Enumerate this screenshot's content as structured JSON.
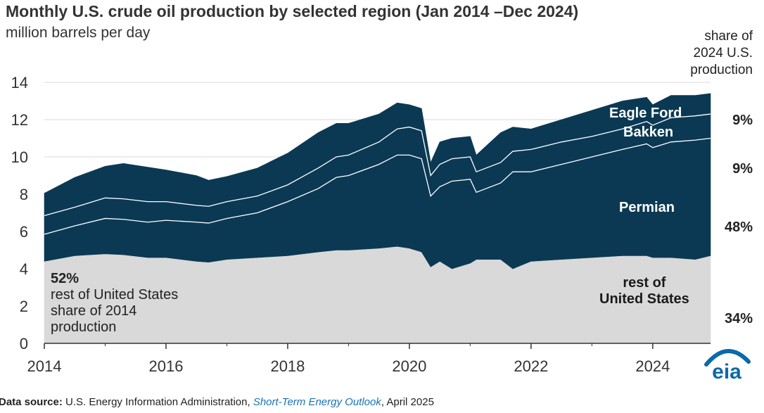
{
  "header": {
    "title": "Monthly U.S. crude oil production by selected region (Jan 2014 –Dec 2024)",
    "subtitle": "million barrels per day"
  },
  "share_heading": [
    "share of",
    "2024 U.S.",
    "production"
  ],
  "shares_2024": {
    "eagle_ford": "9%",
    "bakken": "9%",
    "permian": "48%",
    "rest": "34%"
  },
  "annotation_2014": {
    "percent": "52%",
    "line1": "rest of United States",
    "line2": "share of 2014",
    "line3": "production"
  },
  "labels": {
    "eagle_ford": "Eagle Ford",
    "bakken": "Bakken",
    "permian": "Permian",
    "rest_line1": "rest of",
    "rest_line2": "United States"
  },
  "source": {
    "prefix": "Data source:",
    "agency": " U.S. Energy Information Administration, ",
    "publication": "Short-Term Energy Outlook",
    "date": ", April 2025"
  },
  "logo_text": "eia",
  "colors": {
    "rest": "#d9d9d9",
    "regions": "#0b3954",
    "boundary": "#ffffff",
    "logo": "#0b6aa8"
  },
  "chart_data": {
    "type": "area",
    "stacking": "cumulative",
    "x_unit": "year",
    "xlim": [
      2014,
      2024.95
    ],
    "ylim": [
      0,
      14
    ],
    "x_ticks": [
      2014,
      2016,
      2018,
      2020,
      2022,
      2024
    ],
    "y_ticks": [
      0,
      2,
      4,
      6,
      8,
      10,
      12,
      14
    ],
    "grid": "horizontal",
    "series": [
      {
        "name": "rest of United States",
        "top_key": "rest_top"
      },
      {
        "name": "Permian",
        "top_key": "permian_top"
      },
      {
        "name": "Bakken",
        "top_key": "bakken_top"
      },
      {
        "name": "Eagle Ford",
        "top_key": "eagleford_top"
      }
    ],
    "x": [
      2014.0,
      2014.5,
      2015.0,
      2015.3,
      2015.7,
      2016.0,
      2016.5,
      2016.7,
      2017.0,
      2017.5,
      2018.0,
      2018.5,
      2018.8,
      2019.0,
      2019.5,
      2019.8,
      2020.0,
      2020.2,
      2020.35,
      2020.5,
      2020.7,
      2021.0,
      2021.1,
      2021.5,
      2021.7,
      2022.0,
      2022.5,
      2023.0,
      2023.5,
      2023.9,
      2024.0,
      2024.3,
      2024.7,
      2024.95
    ],
    "rest_top": [
      4.4,
      4.7,
      4.8,
      4.75,
      4.6,
      4.6,
      4.4,
      4.35,
      4.5,
      4.6,
      4.7,
      4.9,
      5.0,
      5.0,
      5.1,
      5.2,
      5.1,
      4.9,
      4.1,
      4.4,
      4.0,
      4.3,
      4.5,
      4.5,
      4.0,
      4.4,
      4.5,
      4.6,
      4.7,
      4.7,
      4.6,
      4.6,
      4.5,
      4.7
    ],
    "permian_top": [
      5.85,
      6.3,
      6.7,
      6.65,
      6.5,
      6.6,
      6.5,
      6.45,
      6.7,
      7.0,
      7.6,
      8.3,
      8.9,
      9.0,
      9.6,
      10.1,
      10.1,
      9.9,
      7.9,
      8.4,
      8.7,
      8.8,
      8.1,
      8.6,
      9.2,
      9.2,
      9.6,
      10.0,
      10.4,
      10.7,
      10.5,
      10.8,
      10.9,
      11.0
    ],
    "bakken_top": [
      6.85,
      7.3,
      7.8,
      7.75,
      7.6,
      7.6,
      7.4,
      7.35,
      7.6,
      7.9,
      8.5,
      9.4,
      10.0,
      10.1,
      10.8,
      11.5,
      11.6,
      11.4,
      9.0,
      9.6,
      9.9,
      10.0,
      9.2,
      9.7,
      10.3,
      10.4,
      10.8,
      11.1,
      11.5,
      11.9,
      11.7,
      12.1,
      12.2,
      12.3
    ],
    "eagleford_top": [
      8.05,
      8.9,
      9.5,
      9.65,
      9.45,
      9.3,
      9.0,
      8.75,
      8.95,
      9.4,
      10.2,
      11.3,
      11.8,
      11.8,
      12.3,
      12.9,
      12.8,
      12.6,
      9.7,
      10.8,
      11.0,
      11.1,
      10.1,
      11.3,
      11.6,
      11.5,
      12.0,
      12.5,
      13.0,
      13.2,
      12.8,
      13.3,
      13.3,
      13.4
    ]
  }
}
